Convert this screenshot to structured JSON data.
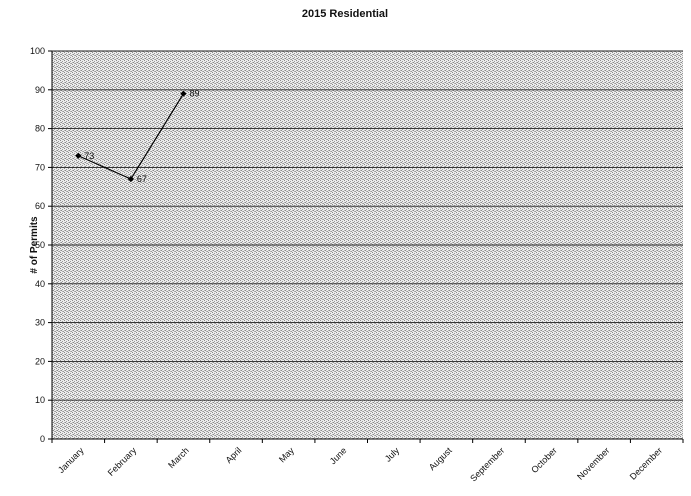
{
  "chart_data": {
    "type": "line",
    "title": "2015 Residential",
    "xlabel": "",
    "ylabel": "# of Permits",
    "ylim": [
      0,
      100
    ],
    "yticks": [
      0,
      10,
      20,
      30,
      40,
      50,
      60,
      70,
      80,
      90,
      100
    ],
    "grid": "horizontal",
    "legend": "none",
    "categories": [
      "January",
      "February",
      "March",
      "April",
      "May",
      "June",
      "July",
      "August",
      "September",
      "October",
      "November",
      "December"
    ],
    "series": [
      {
        "values": [
          73,
          67,
          89,
          null,
          null,
          null,
          null,
          null,
          null,
          null,
          null,
          null
        ],
        "data_labels": [
          "73",
          "67",
          "89"
        ],
        "color": "#000000"
      }
    ],
    "colors": {
      "plot_background": "#d9d9d9",
      "gridline": "#222222",
      "line": "#000000"
    }
  }
}
